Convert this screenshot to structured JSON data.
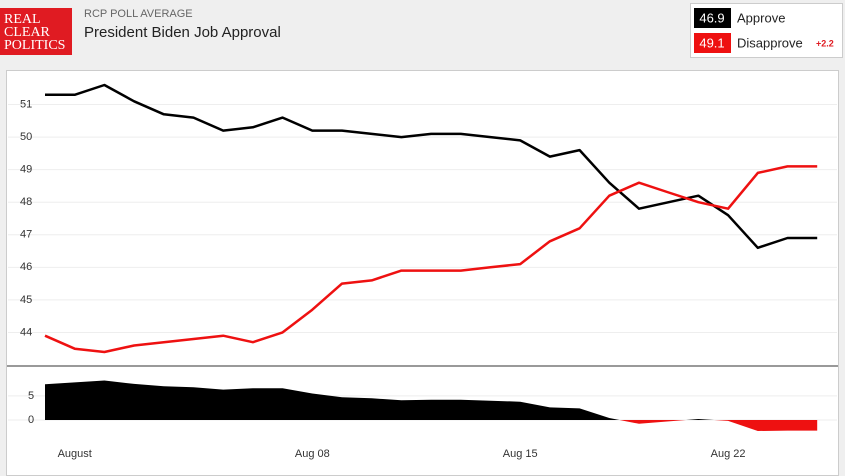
{
  "logo": [
    "REAL",
    "CLEAR",
    "POLITICS"
  ],
  "source": "RCP POLL AVERAGE",
  "title": "President Biden Job Approval",
  "spread": {
    "value": 2.2,
    "label": "+2.2"
  },
  "chart_data": [
    {
      "type": "line",
      "categories": [
        null,
        "August",
        null,
        null,
        null,
        null,
        null,
        null,
        null,
        "Aug 08",
        null,
        null,
        null,
        null,
        null,
        null,
        "Aug 15",
        null,
        null,
        null,
        null,
        null,
        null,
        "Aug 22",
        null,
        null,
        null
      ],
      "series": [
        {
          "name": "Approve",
          "color": "#000000",
          "latest": 46.9,
          "values": [
            51.3,
            51.3,
            51.6,
            51.1,
            50.7,
            50.6,
            50.2,
            50.3,
            50.6,
            50.2,
            50.2,
            50.1,
            50.0,
            50.1,
            50.1,
            50.0,
            49.9,
            49.4,
            49.6,
            48.6,
            47.8,
            48.0,
            48.2,
            47.6,
            46.6,
            46.9,
            46.9
          ]
        },
        {
          "name": "Disapprove",
          "color": "#ee1111",
          "latest": 49.1,
          "values": [
            43.9,
            43.5,
            43.4,
            43.6,
            43.7,
            43.8,
            43.9,
            43.7,
            44.0,
            44.7,
            45.5,
            45.6,
            45.9,
            45.9,
            45.9,
            46.0,
            46.1,
            46.8,
            47.2,
            48.2,
            48.6,
            48.3,
            48.0,
            47.8,
            48.9,
            49.1,
            49.1
          ]
        }
      ],
      "ylim": [
        43,
        52
      ],
      "yticks": [
        44,
        45,
        46,
        47,
        48,
        49,
        50,
        51
      ],
      "grid": true
    },
    {
      "type": "area",
      "values": [
        7.4,
        7.8,
        8.2,
        7.5,
        7.0,
        6.8,
        6.3,
        6.6,
        6.6,
        5.5,
        4.7,
        4.5,
        4.1,
        4.2,
        4.2,
        4.0,
        3.8,
        2.6,
        2.4,
        0.4,
        -0.8,
        -0.3,
        0.2,
        -0.2,
        -2.3,
        -2.2,
        -2.2
      ],
      "color": "#000000",
      "negative_color": "#ee1111",
      "ylim": [
        -2.5,
        11
      ],
      "yticks": [
        0,
        5
      ],
      "grid": true
    }
  ]
}
